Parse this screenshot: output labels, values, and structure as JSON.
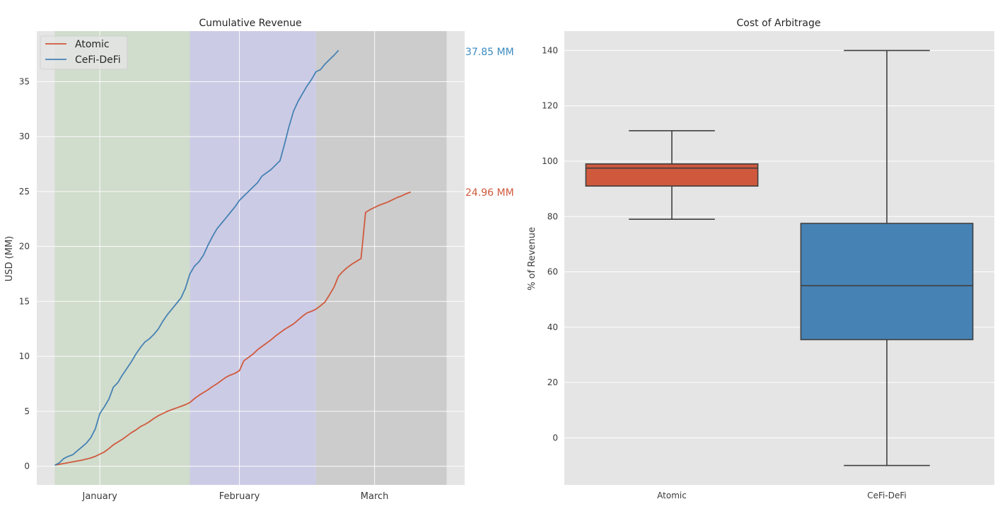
{
  "colors": {
    "atomic": "#d0593d",
    "cefi_defi": "#4682b4",
    "plot_bg": "#e5e5e5",
    "grid": "#ffffff",
    "box_line": "#3f3f3f",
    "band_january": "#d0dccc",
    "band_february": "#cccbe5",
    "band_march": "#cccccc"
  },
  "chart_data": [
    {
      "type": "line",
      "title": "Cumulative Revenue",
      "xlabel": "",
      "ylabel": "USD (MM)",
      "ylim": [
        -1.7,
        39.6
      ],
      "xlim": [
        -3,
        92
      ],
      "yticks": [
        0,
        5,
        10,
        15,
        20,
        25,
        30,
        35
      ],
      "month_ticks": [
        {
          "label": "January",
          "day": 11
        },
        {
          "label": "February",
          "day": 42
        },
        {
          "label": "March",
          "day": 72
        }
      ],
      "bands": [
        {
          "name": "January",
          "start_day": 1,
          "end_day": 31,
          "color_key": "band_january"
        },
        {
          "name": "February",
          "start_day": 31,
          "end_day": 59,
          "color_key": "band_february"
        },
        {
          "name": "March",
          "start_day": 59,
          "end_day": 88,
          "color_key": "band_march"
        }
      ],
      "legend": {
        "placement": "top-left",
        "entries": [
          "Atomic",
          "CeFi-DeFi"
        ]
      },
      "series": [
        {
          "name": "Atomic",
          "color_key": "atomic",
          "end_label": "24.96 MM",
          "points": [
            [
              1,
              0.1
            ],
            [
              3,
              0.25
            ],
            [
              5,
              0.4
            ],
            [
              7,
              0.55
            ],
            [
              9,
              0.75
            ],
            [
              10,
              0.9
            ],
            [
              11,
              1.1
            ],
            [
              12,
              1.3
            ],
            [
              13,
              1.6
            ],
            [
              14,
              1.95
            ],
            [
              15,
              2.2
            ],
            [
              16,
              2.45
            ],
            [
              17,
              2.75
            ],
            [
              18,
              3.05
            ],
            [
              19,
              3.3
            ],
            [
              20,
              3.6
            ],
            [
              21,
              3.8
            ],
            [
              22,
              4.05
            ],
            [
              23,
              4.35
            ],
            [
              24,
              4.6
            ],
            [
              25,
              4.8
            ],
            [
              26,
              5.0
            ],
            [
              27,
              5.15
            ],
            [
              28,
              5.3
            ],
            [
              29,
              5.45
            ],
            [
              30,
              5.6
            ],
            [
              31,
              5.8
            ],
            [
              32,
              6.15
            ],
            [
              33,
              6.45
            ],
            [
              34,
              6.7
            ],
            [
              35,
              6.95
            ],
            [
              36,
              7.25
            ],
            [
              37,
              7.5
            ],
            [
              38,
              7.8
            ],
            [
              39,
              8.1
            ],
            [
              40,
              8.3
            ],
            [
              41,
              8.45
            ],
            [
              42,
              8.7
            ],
            [
              43,
              9.6
            ],
            [
              44,
              9.9
            ],
            [
              45,
              10.2
            ],
            [
              46,
              10.6
            ],
            [
              47,
              10.9
            ],
            [
              48,
              11.2
            ],
            [
              49,
              11.5
            ],
            [
              50,
              11.85
            ],
            [
              51,
              12.15
            ],
            [
              52,
              12.45
            ],
            [
              53,
              12.7
            ],
            [
              54,
              12.95
            ],
            [
              55,
              13.3
            ],
            [
              56,
              13.65
            ],
            [
              57,
              13.95
            ],
            [
              58,
              14.1
            ],
            [
              59,
              14.3
            ],
            [
              60,
              14.6
            ],
            [
              61,
              14.95
            ],
            [
              62,
              15.6
            ],
            [
              63,
              16.3
            ],
            [
              64,
              17.3
            ],
            [
              65,
              17.75
            ],
            [
              66,
              18.1
            ],
            [
              67,
              18.4
            ],
            [
              68,
              18.65
            ],
            [
              69,
              18.9
            ],
            [
              70,
              23.1
            ],
            [
              71,
              23.35
            ],
            [
              72,
              23.55
            ],
            [
              73,
              23.75
            ],
            [
              74,
              23.9
            ],
            [
              75,
              24.05
            ],
            [
              76,
              24.25
            ],
            [
              77,
              24.45
            ],
            [
              78,
              24.6
            ],
            [
              79,
              24.8
            ],
            [
              80,
              24.96
            ]
          ]
        },
        {
          "name": "CeFi-DeFi",
          "color_key": "cefi_defi",
          "end_label": "37.85 MM",
          "points": [
            [
              1,
              0.1
            ],
            [
              2,
              0.3
            ],
            [
              3,
              0.7
            ],
            [
              4,
              0.9
            ],
            [
              5,
              1.05
            ],
            [
              6,
              1.4
            ],
            [
              7,
              1.75
            ],
            [
              8,
              2.1
            ],
            [
              9,
              2.6
            ],
            [
              10,
              3.4
            ],
            [
              11,
              4.8
            ],
            [
              12,
              5.4
            ],
            [
              13,
              6.1
            ],
            [
              14,
              7.2
            ],
            [
              15,
              7.6
            ],
            [
              16,
              8.3
            ],
            [
              17,
              8.9
            ],
            [
              18,
              9.5
            ],
            [
              19,
              10.2
            ],
            [
              20,
              10.8
            ],
            [
              21,
              11.3
            ],
            [
              22,
              11.6
            ],
            [
              23,
              12.0
            ],
            [
              24,
              12.5
            ],
            [
              25,
              13.2
            ],
            [
              26,
              13.8
            ],
            [
              27,
              14.3
            ],
            [
              28,
              14.8
            ],
            [
              29,
              15.3
            ],
            [
              30,
              16.2
            ],
            [
              31,
              17.5
            ],
            [
              32,
              18.2
            ],
            [
              33,
              18.6
            ],
            [
              34,
              19.2
            ],
            [
              35,
              20.1
            ],
            [
              36,
              20.9
            ],
            [
              37,
              21.6
            ],
            [
              38,
              22.1
            ],
            [
              39,
              22.6
            ],
            [
              40,
              23.1
            ],
            [
              41,
              23.6
            ],
            [
              42,
              24.2
            ],
            [
              43,
              24.6
            ],
            [
              44,
              25.0
            ],
            [
              45,
              25.4
            ],
            [
              46,
              25.8
            ],
            [
              47,
              26.4
            ],
            [
              48,
              26.7
            ],
            [
              49,
              27.0
            ],
            [
              50,
              27.4
            ],
            [
              51,
              27.8
            ],
            [
              52,
              29.3
            ],
            [
              53,
              30.9
            ],
            [
              54,
              32.3
            ],
            [
              55,
              33.2
            ],
            [
              56,
              33.9
            ],
            [
              57,
              34.6
            ],
            [
              58,
              35.2
            ],
            [
              59,
              35.9
            ],
            [
              60,
              36.1
            ],
            [
              61,
              36.6
            ],
            [
              62,
              37.0
            ],
            [
              63,
              37.4
            ],
            [
              64,
              37.85
            ]
          ]
        }
      ]
    },
    {
      "type": "box",
      "title": "Cost of Arbitrage",
      "xlabel": "",
      "ylabel": "% of Revenue",
      "ylim": [
        -17,
        147
      ],
      "yticks": [
        0,
        20,
        40,
        60,
        80,
        100,
        120,
        140
      ],
      "categories": [
        "Atomic",
        "CeFi-DeFi"
      ],
      "boxes": [
        {
          "name": "Atomic",
          "color_key": "atomic",
          "whisker_low": 79,
          "q1": 91,
          "median": 97.5,
          "q3": 99,
          "whisker_high": 111
        },
        {
          "name": "CeFi-DeFi",
          "color_key": "cefi_defi",
          "whisker_low": -10,
          "q1": 35.5,
          "median": 55,
          "q3": 77.5,
          "whisker_high": 140
        }
      ]
    }
  ]
}
